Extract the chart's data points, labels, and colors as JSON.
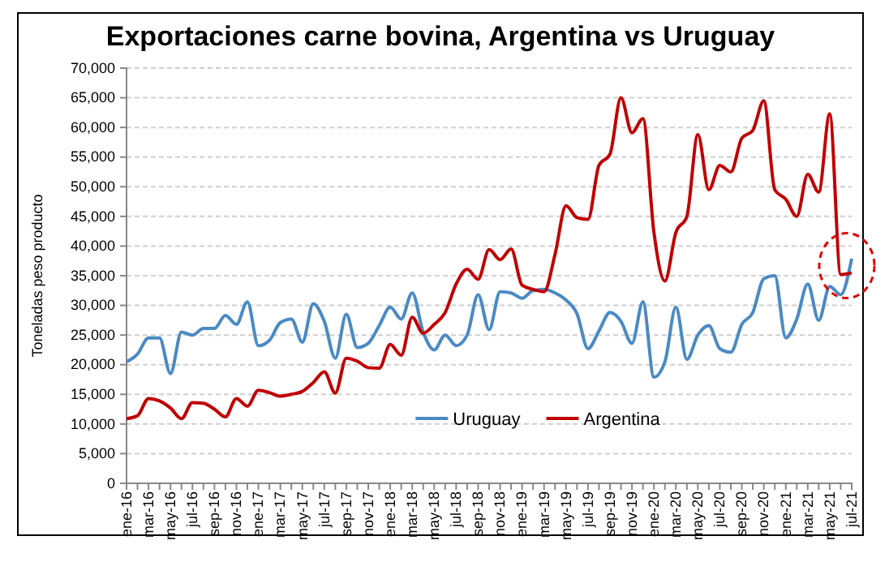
{
  "chart_data": {
    "type": "line",
    "title": "Exportaciones carne bovina, Argentina vs Uruguay",
    "ylabel": "Toneladas peso producto",
    "categories": [
      "ene-16",
      null,
      "mar-16",
      null,
      "may-16",
      null,
      "jul-16",
      null,
      "sep-16",
      null,
      "nov-16",
      null,
      "ene-17",
      null,
      "mar-17",
      null,
      "may-17",
      null,
      "jul-17",
      null,
      "sep-17",
      null,
      "nov-17",
      null,
      "ene-18",
      null,
      "mar-18",
      null,
      "may-18",
      null,
      "jul-18",
      null,
      "sep-18",
      null,
      "nov-18",
      null,
      "ene-19",
      null,
      "mar-19",
      null,
      "may-19",
      null,
      "jul-19",
      null,
      "sep-19",
      null,
      "nov-19",
      null,
      "ene-20",
      null,
      "mar-20",
      null,
      "may-20",
      null,
      "jul-20",
      null,
      "sep-20",
      null,
      "nov-20",
      null,
      "ene-21",
      null,
      "mar-21",
      null,
      "may-21",
      null,
      "jul-21"
    ],
    "series": [
      {
        "name": "Uruguay",
        "color": "#4a8ac4",
        "values": [
          20500,
          21800,
          24500,
          24500,
          18500,
          25500,
          25000,
          26100,
          26100,
          28300,
          26800,
          30600,
          23200,
          24100,
          27100,
          27700,
          23800,
          30300,
          27300,
          21100,
          28500,
          22900,
          23600,
          26600,
          29700,
          27700,
          32100,
          25500,
          22500,
          25000,
          23200,
          25000,
          31800,
          25900,
          32300,
          32100,
          31200,
          32500,
          32700,
          32100,
          30900,
          28600,
          22700,
          25700,
          28800,
          27300,
          23600,
          30600,
          17900,
          20500,
          29700,
          20900,
          25000,
          26600,
          22700,
          22100,
          26800,
          28800,
          34500,
          35000,
          24500,
          27700,
          33600,
          27500,
          33200,
          31800,
          37900
        ]
      },
      {
        "name": "Argentina",
        "color": "#c00000",
        "values": [
          10900,
          11400,
          14300,
          13900,
          12700,
          10900,
          13600,
          13500,
          12500,
          11200,
          14300,
          13000,
          15700,
          15300,
          14700,
          15000,
          15500,
          17000,
          18800,
          15200,
          21100,
          20600,
          19500,
          19400,
          23400,
          21600,
          28000,
          25300,
          26800,
          28800,
          33600,
          36100,
          34400,
          39400,
          37700,
          39500,
          33400,
          32700,
          32300,
          38600,
          46800,
          44800,
          44500,
          53600,
          55500,
          65000,
          59100,
          61500,
          42300,
          34100,
          42300,
          45000,
          58800,
          49500,
          53600,
          52500,
          58200,
          59500,
          64500,
          49500,
          47900,
          45000,
          52100,
          49100,
          62300,
          35200,
          35500
        ]
      }
    ],
    "ylim": [
      0,
      70000
    ],
    "yticks": [
      {
        "value": 0,
        "label": "0"
      },
      {
        "value": 5000,
        "label": "5,000"
      },
      {
        "value": 10000,
        "label": "10,000"
      },
      {
        "value": 15000,
        "label": "15,000"
      },
      {
        "value": 20000,
        "label": "20,000"
      },
      {
        "value": 25000,
        "label": "25,000"
      },
      {
        "value": 30000,
        "label": "30,000"
      },
      {
        "value": 35000,
        "label": "35,000"
      },
      {
        "value": 40000,
        "label": "40,000"
      },
      {
        "value": 45000,
        "label": "45,000"
      },
      {
        "value": 50000,
        "label": "50,000"
      },
      {
        "value": 55000,
        "label": "55,000"
      },
      {
        "value": 60000,
        "label": "60,000"
      },
      {
        "value": 65000,
        "label": "65,000"
      },
      {
        "value": 70000,
        "label": "70,000"
      }
    ],
    "grid": "y",
    "legend": "bottom",
    "marker": "none",
    "line_style": "solid"
  }
}
